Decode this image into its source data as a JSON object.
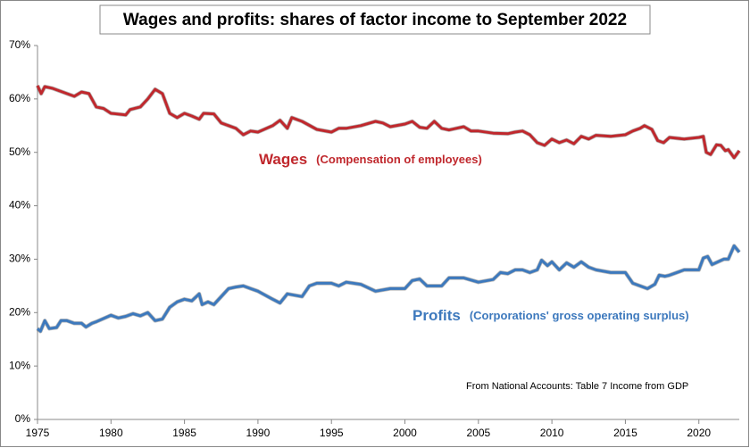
{
  "chart_data": {
    "type": "line",
    "title": "Wages and profits: shares of factor income to September 2022",
    "note": "From National Accounts: Table 7 Income from GDP",
    "xlim": [
      1975,
      2022.75
    ],
    "xticks": [
      1975,
      1980,
      1985,
      1990,
      1995,
      2000,
      2005,
      2010,
      2015,
      2020
    ],
    "ylim": [
      0,
      70
    ],
    "yticks": [
      {
        "value": 0,
        "label": "0%"
      },
      {
        "value": 10,
        "label": "10%"
      },
      {
        "value": 20,
        "label": "20%"
      },
      {
        "value": 30,
        "label": "30%"
      },
      {
        "value": 40,
        "label": "40%"
      },
      {
        "value": 50,
        "label": "50%"
      },
      {
        "value": 60,
        "label": "60%"
      },
      {
        "value": 70,
        "label": "70%"
      }
    ],
    "series": [
      {
        "name": "Wages",
        "description": "(Compensation of employees)",
        "color": "#c0282d",
        "x": [
          1975,
          1975.25,
          1975.5,
          1976,
          1977,
          1977.5,
          1978,
          1978.5,
          1979,
          1979.5,
          1980,
          1981,
          1981.3,
          1982,
          1982.5,
          1983,
          1983.5,
          1984,
          1984.5,
          1985,
          1985.5,
          1986,
          1986.3,
          1987,
          1987.5,
          1988,
          1988.5,
          1989,
          1989.5,
          1990,
          1991,
          1991.5,
          1992,
          1992.3,
          1993,
          1994,
          1995,
          1995.5,
          1996,
          1997,
          1998,
          1998.5,
          1999,
          2000,
          2000.5,
          2001,
          2001.5,
          2002,
          2002.5,
          2003,
          2004,
          2004.5,
          2005,
          2006,
          2007,
          2007.5,
          2008,
          2008.5,
          2009,
          2009.5,
          2010,
          2010.5,
          2011,
          2011.5,
          2012,
          2012.5,
          2013,
          2014,
          2015,
          2015.5,
          2016,
          2016.3,
          2016.8,
          2017.2,
          2017.6,
          2018,
          2019,
          2020,
          2020.3,
          2020.5,
          2020.8,
          2021.2,
          2021.5,
          2021.8,
          2022,
          2022.4,
          2022.75
        ],
        "values": [
          62.5,
          61,
          62.3,
          62,
          61,
          60.5,
          61.3,
          61,
          58.5,
          58.2,
          57.3,
          57,
          58,
          58.5,
          60,
          61.8,
          61,
          57.3,
          56.5,
          57.3,
          56.8,
          56.2,
          57.3,
          57.2,
          55.5,
          55,
          54.5,
          53.3,
          54,
          53.8,
          55,
          56,
          54.5,
          56.5,
          55.8,
          54.3,
          53.8,
          54.5,
          54.5,
          55,
          55.8,
          55.5,
          54.8,
          55.3,
          55.8,
          54.7,
          54.5,
          55.8,
          54.5,
          54.2,
          54.8,
          54,
          54,
          53.6,
          53.5,
          53.8,
          54,
          53.3,
          51.8,
          51.3,
          52.5,
          51.8,
          52.3,
          51.6,
          53,
          52.5,
          53.2,
          53,
          53.3,
          54,
          54.5,
          55,
          54.3,
          52.2,
          51.8,
          52.8,
          52.5,
          52.8,
          53,
          50,
          49.6,
          51.4,
          51.3,
          50.3,
          50.5,
          49,
          50.3
        ]
      },
      {
        "name": "Profits",
        "description": "(Corporations' gross operating surplus)",
        "color": "#3d79bd",
        "x": [
          1975,
          1975.2,
          1975.5,
          1975.8,
          1976.3,
          1976.6,
          1977,
          1977.5,
          1978,
          1978.3,
          1978.7,
          1979,
          1980,
          1980.5,
          1981,
          1981.5,
          1982,
          1982.5,
          1983,
          1983.5,
          1984,
          1984.5,
          1985,
          1985.5,
          1986,
          1986.2,
          1986.6,
          1987,
          1987.5,
          1988,
          1988.5,
          1989,
          1989.5,
          1990,
          1991,
          1991.5,
          1992,
          1993,
          1993.5,
          1994,
          1995,
          1995.5,
          1996,
          1997,
          1998,
          1999,
          2000,
          2000.5,
          2001,
          2001.5,
          2002.5,
          2003,
          2004,
          2005,
          2006,
          2006.5,
          2007,
          2007.5,
          2008,
          2008.5,
          2009,
          2009.3,
          2009.7,
          2010,
          2010.5,
          2011,
          2011.5,
          2012,
          2012.5,
          2013,
          2014,
          2015,
          2015.5,
          2016,
          2016.5,
          2017,
          2017.3,
          2017.7,
          2018,
          2019,
          2020,
          2020.3,
          2020.6,
          2020.9,
          2021.3,
          2021.7,
          2022,
          2022.4,
          2022.75
        ],
        "values": [
          17,
          16.5,
          18.5,
          17,
          17.2,
          18.5,
          18.5,
          18,
          18,
          17.3,
          18,
          18.3,
          19.5,
          19,
          19.3,
          19.8,
          19.4,
          20,
          18.5,
          18.8,
          21,
          22,
          22.5,
          22.2,
          23.5,
          21.5,
          22,
          21.5,
          23,
          24.5,
          24.8,
          25,
          24.5,
          24,
          22.5,
          21.8,
          23.5,
          23,
          25,
          25.5,
          25.5,
          25,
          25.7,
          25.3,
          24,
          24.5,
          24.5,
          26,
          26.3,
          25,
          25,
          26.5,
          26.5,
          25.7,
          26.2,
          27.5,
          27.3,
          28,
          28,
          27.5,
          28,
          29.8,
          28.8,
          29.5,
          28,
          29.3,
          28.5,
          29.5,
          28.5,
          28,
          27.5,
          27.5,
          25.5,
          25,
          24.5,
          25.3,
          27,
          26.8,
          27,
          28,
          28,
          30.2,
          30.5,
          29,
          29.5,
          30,
          30,
          32.5,
          31.3
        ]
      }
    ]
  }
}
